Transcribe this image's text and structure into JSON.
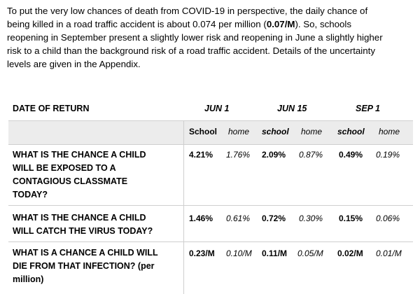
{
  "intro": {
    "line1": "To put the very low chances of death from COVID-19  in perspective, the daily chance of",
    "line2_pre": "being killed in a road traffic accident is about 0.074 per million (",
    "line2_bold": "0.07/M",
    "line2_post": "). So, schools",
    "line3": "reopening in September present a slightly lower risk and reopening in June a slightly higher",
    "line4": "risk to a child than the background risk of a road traffic accident. Details of the uncertainty",
    "line5": "levels are given in the Appendix."
  },
  "table": {
    "header": {
      "label": "DATE OF RETURN",
      "dates": [
        "JUN 1",
        "JUN 15",
        "SEP 1"
      ]
    },
    "subheader": [
      "School",
      "home",
      "school",
      "home",
      "school",
      "home"
    ],
    "rows": [
      {
        "question": [
          "WHAT IS THE CHANCE A CHILD",
          "WILL BE EXPOSED TO A",
          "CONTAGIOUS CLASSMATE",
          "TODAY?"
        ],
        "values": [
          "4.21%",
          "1.76%",
          "2.09%",
          "0.87%",
          "0.49%",
          "0.19%"
        ]
      },
      {
        "question": [
          "WHAT IS THE CHANCE A CHILD",
          "WILL CATCH THE VIRUS TODAY?"
        ],
        "values": [
          "1.46%",
          "0.61%",
          "0.72%",
          "0.30%",
          "0.15%",
          "0.06%"
        ]
      },
      {
        "question": [
          "WHAT IS A CHANCE A CHILD WILL",
          "DIE FROM THAT INFECTION? (per",
          "million)"
        ],
        "values": [
          "0.23/M",
          "0.10/M",
          "0.11/M",
          "0.05/M",
          "0.02/M",
          "0.01/M"
        ]
      }
    ]
  }
}
